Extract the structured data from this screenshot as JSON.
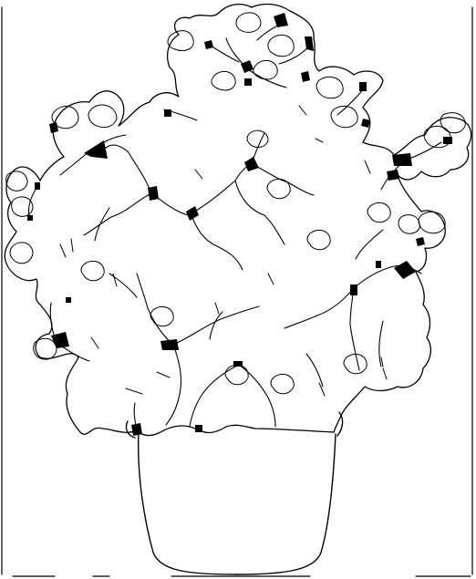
{
  "illustration": {
    "subject": "potted-plant-line-drawing",
    "colors": {
      "background": "#ffffff",
      "ink": "#000000"
    }
  }
}
